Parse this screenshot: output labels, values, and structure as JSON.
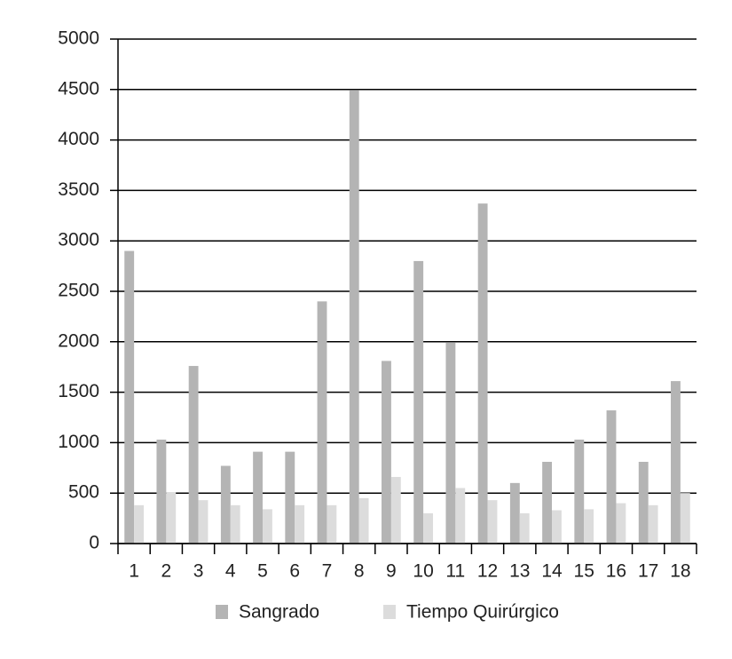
{
  "chart_data": {
    "type": "bar",
    "categories": [
      "1",
      "2",
      "3",
      "4",
      "5",
      "6",
      "7",
      "8",
      "9",
      "10",
      "11",
      "12",
      "13",
      "14",
      "15",
      "16",
      "17",
      "18"
    ],
    "series": [
      {
        "name": "Sangrado",
        "color": "#b4b4b4",
        "values": [
          2900,
          1030,
          1760,
          770,
          910,
          910,
          2400,
          4490,
          1810,
          2800,
          1990,
          3370,
          600,
          810,
          1030,
          1320,
          810,
          1610
        ]
      },
      {
        "name": "Tiempo Quirúrgico",
        "color": "#dcdcdc",
        "values": [
          380,
          510,
          430,
          380,
          340,
          380,
          380,
          450,
          660,
          300,
          550,
          430,
          300,
          330,
          340,
          400,
          380,
          500
        ]
      }
    ],
    "ylim": [
      0,
      5000
    ],
    "yticks": [
      0,
      500,
      1000,
      1500,
      2000,
      2500,
      3000,
      3500,
      4000,
      4500,
      5000
    ],
    "grid": true,
    "legend": "bottom"
  }
}
